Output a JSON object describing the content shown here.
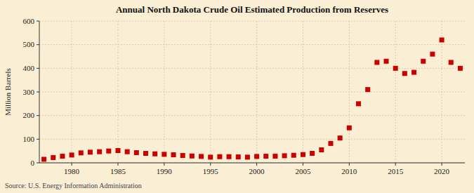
{
  "chart_data": {
    "type": "scatter",
    "title": "Annual North Dakota Crude Oil Estimated Production from Reserves",
    "y_label": "Million Barrels",
    "source": "Source: U.S. Energy Information Administration",
    "color": "#cc0000",
    "marker": "square",
    "grid": true,
    "xlim": [
      1976.5,
      2022.5
    ],
    "xticks": [
      1980,
      1985,
      1990,
      1995,
      2000,
      2005,
      2010,
      2015,
      2020
    ],
    "ylim": [
      0,
      600
    ],
    "yticks": [
      0,
      100,
      200,
      300,
      400,
      500,
      600
    ],
    "x": [
      1977,
      1978,
      1979,
      1980,
      1981,
      1982,
      1983,
      1984,
      1985,
      1986,
      1987,
      1988,
      1989,
      1990,
      1991,
      1992,
      1993,
      1994,
      1995,
      1996,
      1997,
      1998,
      1999,
      2000,
      2001,
      2002,
      2003,
      2004,
      2005,
      2006,
      2007,
      2008,
      2009,
      2010,
      2011,
      2012,
      2013,
      2014,
      2015,
      2016,
      2017,
      2018,
      2019,
      2020,
      2021,
      2022
    ],
    "values": [
      15,
      22,
      28,
      33,
      42,
      45,
      47,
      50,
      52,
      47,
      43,
      40,
      38,
      36,
      34,
      31,
      29,
      27,
      24,
      26,
      26,
      25,
      24,
      27,
      28,
      28,
      30,
      32,
      35,
      40,
      55,
      82,
      105,
      148,
      250,
      310,
      425,
      430,
      400,
      378,
      383,
      430,
      460,
      520,
      425,
      400
    ]
  }
}
